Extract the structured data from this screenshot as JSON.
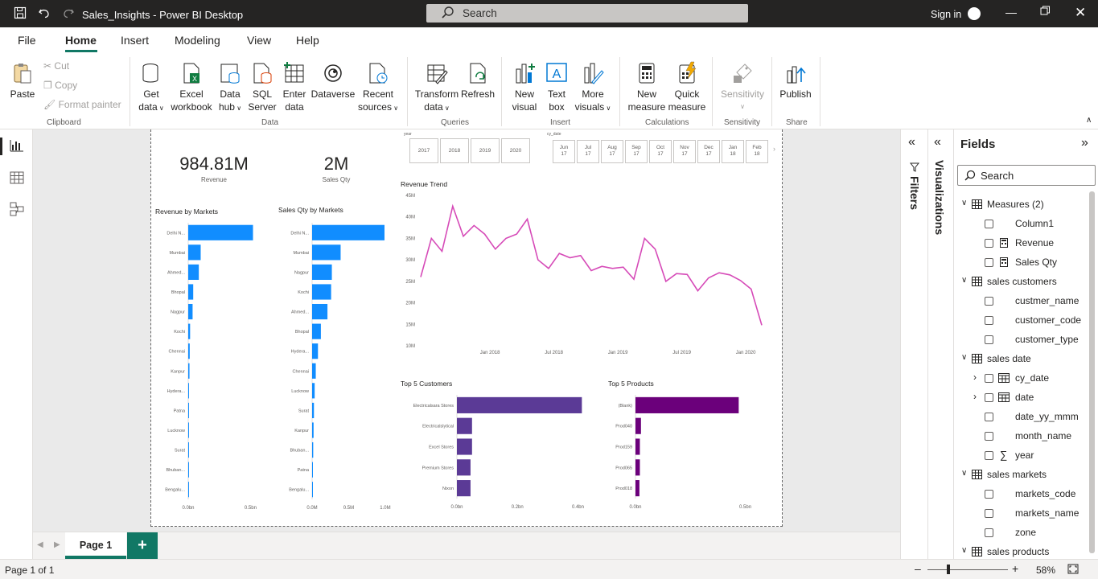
{
  "titlebar": {
    "title": "Sales_Insights - Power BI Desktop",
    "search_placeholder": "Search",
    "signin": "Sign in"
  },
  "menu": {
    "items": [
      "File",
      "Home",
      "Insert",
      "Modeling",
      "View",
      "Help"
    ]
  },
  "ribbon": {
    "clipboard": {
      "paste": "Paste",
      "cut": "Cut",
      "copy": "Copy",
      "format_painter": "Format painter",
      "group": "Clipboard"
    },
    "data": {
      "get_data": [
        "Get",
        "data"
      ],
      "excel": [
        "Excel",
        "workbook"
      ],
      "data_hub": [
        "Data",
        "hub"
      ],
      "sql": [
        "SQL",
        "Server"
      ],
      "enter": [
        "Enter",
        "data"
      ],
      "dataverse": "Dataverse",
      "recent": [
        "Recent",
        "sources"
      ],
      "group": "Data"
    },
    "queries": {
      "transform": [
        "Transform",
        "data"
      ],
      "refresh": "Refresh",
      "group": "Queries"
    },
    "insert": {
      "new_visual": [
        "New",
        "visual"
      ],
      "text_box": [
        "Text",
        "box"
      ],
      "more_visuals": [
        "More",
        "visuals"
      ],
      "group": "Insert"
    },
    "calculations": {
      "new_measure": [
        "New",
        "measure"
      ],
      "quick_measure": [
        "Quick",
        "measure"
      ],
      "group": "Calculations"
    },
    "sensitivity": {
      "label": "Sensitivity",
      "group": "Sensitivity"
    },
    "share": {
      "publish": "Publish",
      "group": "Share"
    }
  },
  "report": {
    "kpis": [
      {
        "value": "984.81M",
        "label": "Revenue"
      },
      {
        "value": "2M",
        "label": "Sales Qty"
      }
    ],
    "year_slicer": {
      "label": "year",
      "items": [
        "2017",
        "2018",
        "2019",
        "2020"
      ]
    },
    "date_slicer": {
      "label": "cy_date",
      "items": [
        [
          "Jun",
          "17"
        ],
        [
          "Jul",
          "17"
        ],
        [
          "Aug",
          "17"
        ],
        [
          "Sep",
          "17"
        ],
        [
          "Oct",
          "17"
        ],
        [
          "Nov",
          "17"
        ],
        [
          "Dec",
          "17"
        ],
        [
          "Jan",
          "18"
        ],
        [
          "Feb",
          "18"
        ]
      ]
    },
    "revenue_by_markets": {
      "title": "Revenue by Markets",
      "categories": [
        "Delhi N...",
        "Mumbai",
        "Ahmed...",
        "Bhopal",
        "Nagpur",
        "Kochi",
        "Chennai",
        "Kanpur",
        "Hydera...",
        "Patna",
        "Lucknow",
        "Surat",
        "Bhuban...",
        "Bengalu..."
      ],
      "values": [
        0.52,
        0.1,
        0.085,
        0.04,
        0.035,
        0.015,
        0.012,
        0.01,
        0.005,
        0.003,
        0.002,
        0.002,
        0.001,
        0.001
      ],
      "xticks": [
        "0.0bn",
        "0.5bn"
      ],
      "color": "#118DFF"
    },
    "sales_qty_by_markets": {
      "title": "Sales Qty by Markets",
      "categories": [
        "Delhi N...",
        "Mumbai",
        "Nagpur",
        "Kochi",
        "Ahmed...",
        "Bhopal",
        "Hydera...",
        "Chennai",
        "Lucknow",
        "Surat",
        "Kanpur",
        "Bhuban...",
        "Patna",
        "Bengalu..."
      ],
      "values": [
        0.99,
        0.39,
        0.27,
        0.26,
        0.21,
        0.12,
        0.08,
        0.05,
        0.035,
        0.025,
        0.02,
        0.015,
        0.01,
        0.005
      ],
      "xticks": [
        "0.0M",
        "0.5M",
        "1.0M"
      ],
      "color": "#118DFF"
    },
    "revenue_trend": {
      "title": "Revenue Trend",
      "yticks": [
        "45M",
        "40M",
        "35M",
        "30M",
        "25M",
        "20M",
        "15M",
        "10M"
      ],
      "xticks": [
        "Jan 2018",
        "Jul 2018",
        "Jan 2019",
        "Jul 2019",
        "Jan 2020"
      ],
      "values": [
        26,
        35,
        32,
        42.5,
        35.5,
        38,
        36,
        32.5,
        35,
        36,
        39.5,
        30,
        28,
        31.5,
        30.5,
        31,
        27.5,
        28.5,
        28,
        28.3,
        25.5,
        35,
        32.5,
        25,
        26.8,
        26.6,
        22.8,
        25.8,
        27,
        26.5,
        25.2,
        23.2,
        14.8
      ],
      "color": "#D64BB8"
    },
    "top_customers": {
      "title": "Top 5 Customers",
      "categories": [
        "Electricalsara Stores",
        "Electricalslytical",
        "Excel Stores",
        "Premium Stores",
        "Nixon"
      ],
      "values": [
        0.413,
        0.05,
        0.05,
        0.045,
        0.045
      ],
      "xticks": [
        "0.0bn",
        "0.2bn",
        "0.4bn"
      ],
      "color": "#5B3A96"
    },
    "top_products": {
      "title": "Top 5 Products",
      "categories": [
        "(Blank)",
        "Prod040",
        "Prod159",
        "Prod065",
        "Prod018"
      ],
      "values": [
        0.47,
        0.025,
        0.02,
        0.02,
        0.018
      ],
      "xticks": [
        "0.0bn",
        "0.5bn"
      ],
      "color": "#6B007B"
    }
  },
  "panes": {
    "filters": "Filters",
    "visualizations": "Visualizations",
    "fields": {
      "title": "Fields",
      "search": "Search",
      "rows": [
        {
          "type": "table",
          "label": "Measures (2)"
        },
        {
          "type": "field",
          "label": "Column1",
          "icon": ""
        },
        {
          "type": "field",
          "label": "Revenue",
          "icon": "calc"
        },
        {
          "type": "field",
          "label": "Sales Qty",
          "icon": "calc"
        },
        {
          "type": "table",
          "label": "sales customers"
        },
        {
          "type": "field",
          "label": "custmer_name",
          "icon": ""
        },
        {
          "type": "field",
          "label": "customer_code",
          "icon": ""
        },
        {
          "type": "field",
          "label": "customer_type",
          "icon": ""
        },
        {
          "type": "table",
          "label": "sales date"
        },
        {
          "type": "hier",
          "label": "cy_date",
          "icon": "cal"
        },
        {
          "type": "hier",
          "label": "date",
          "icon": "cal"
        },
        {
          "type": "field",
          "label": "date_yy_mmm",
          "icon": ""
        },
        {
          "type": "field",
          "label": "month_name",
          "icon": ""
        },
        {
          "type": "field",
          "label": "year",
          "icon": "sigma"
        },
        {
          "type": "table",
          "label": "sales markets"
        },
        {
          "type": "field",
          "label": "markets_code",
          "icon": ""
        },
        {
          "type": "field",
          "label": "markets_name",
          "icon": ""
        },
        {
          "type": "field",
          "label": "zone",
          "icon": ""
        },
        {
          "type": "table",
          "label": "sales products"
        }
      ]
    }
  },
  "tabs": {
    "page": "Page 1",
    "add": "+"
  },
  "status": {
    "page": "Page 1 of 1",
    "zoom": "58%"
  }
}
